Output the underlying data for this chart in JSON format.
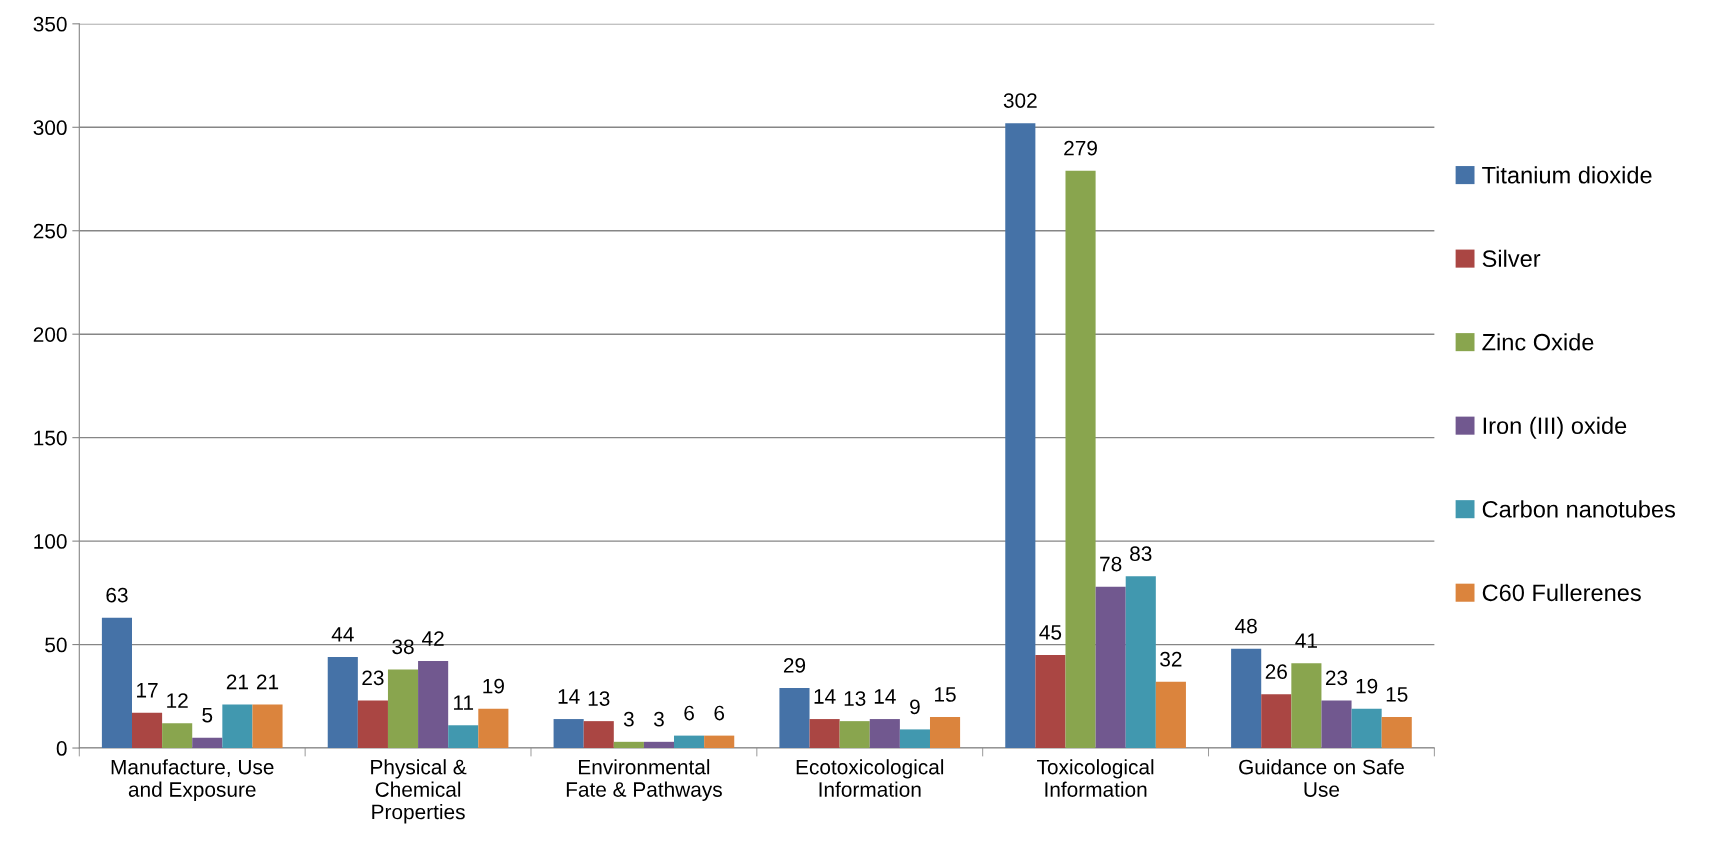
{
  "chart_data": {
    "type": "bar",
    "categories": [
      "Manufacture, Use and Exposure",
      "Physical & Chemical Properties",
      "Environmental Fate & Pathways",
      "Ecotoxicological Information",
      "Toxicological Information",
      "Guidance on Safe Use"
    ],
    "series": [
      {
        "name": "Titanium dioxide",
        "color": "#4572a7",
        "values": [
          63,
          44,
          14,
          29,
          302,
          48
        ]
      },
      {
        "name": "Silver",
        "color": "#aa4643",
        "values": [
          17,
          23,
          13,
          14,
          45,
          26
        ]
      },
      {
        "name": "Zinc Oxide",
        "color": "#89a54e",
        "values": [
          12,
          38,
          3,
          13,
          279,
          41
        ]
      },
      {
        "name": "Iron (III) oxide",
        "color": "#71588f",
        "values": [
          5,
          42,
          3,
          14,
          78,
          23
        ]
      },
      {
        "name": "Carbon nanotubes",
        "color": "#4198af",
        "values": [
          21,
          11,
          6,
          9,
          83,
          19
        ]
      },
      {
        "name": "C60 Fullerenes",
        "color": "#db843d",
        "values": [
          21,
          19,
          6,
          15,
          32,
          15
        ]
      }
    ],
    "ylim": [
      0,
      350
    ],
    "yticks": [
      0,
      50,
      100,
      150,
      200,
      250,
      300,
      350
    ],
    "grid": "y",
    "legend": "right",
    "data_labels": true
  }
}
